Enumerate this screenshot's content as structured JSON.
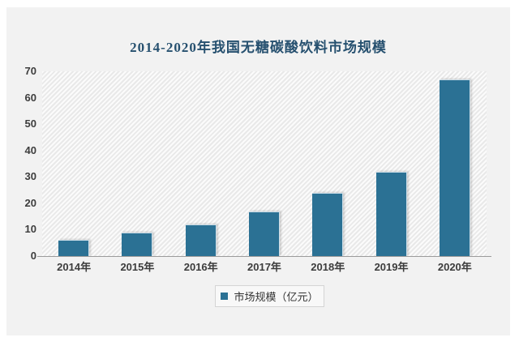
{
  "chart_data": {
    "type": "bar",
    "title": "2014-2020年我国无糖碳酸饮料市场规模",
    "categories": [
      "2014年",
      "2015年",
      "2016年",
      "2017年",
      "2018年",
      "2019年",
      "2020年"
    ],
    "values": [
      6,
      9,
      12,
      17,
      24,
      32,
      67
    ],
    "legend": "市场规模（亿元）",
    "legend_position": "bottom",
    "xlabel": "",
    "ylabel": "",
    "ylim": [
      0,
      70
    ],
    "yticks": [
      0,
      10,
      20,
      30,
      40,
      50,
      60,
      70
    ],
    "grid": false,
    "colors": {
      "bar": "#2b7194",
      "title": "#26506f",
      "tick_text": "#3d3d3d",
      "panel_background": "#f2f2f2",
      "plot_hatch": "#e9e9e9",
      "axis_line": "#9b9b9b"
    }
  }
}
